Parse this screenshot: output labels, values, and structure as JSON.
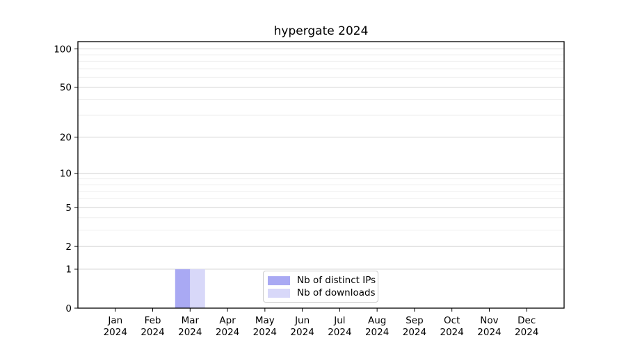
{
  "figure": {
    "title": "hypergate 2024"
  },
  "legend": {
    "items": [
      {
        "label": "Nb of distinct IPs",
        "color": "#a9a9f3"
      },
      {
        "label": "Nb of downloads",
        "color": "#d8d8f9"
      }
    ]
  },
  "chart_data": {
    "type": "bar",
    "title": "hypergate 2024",
    "categories": [
      "Jan",
      "Feb",
      "Mar",
      "Apr",
      "May",
      "Jun",
      "Jul",
      "Aug",
      "Sep",
      "Oct",
      "Nov",
      "Dec"
    ],
    "category_sublabel": "2024",
    "series": [
      {
        "name": "Nb of distinct IPs",
        "color": "#a9a9f3",
        "values": [
          0,
          0,
          1,
          0,
          0,
          0,
          0,
          0,
          0,
          0,
          0,
          0
        ]
      },
      {
        "name": "Nb of downloads",
        "color": "#d8d8f9",
        "values": [
          0,
          0,
          1,
          0,
          0,
          0,
          0,
          0,
          0,
          0,
          0,
          0
        ]
      }
    ],
    "yscale": "log1p",
    "ylim": [
      0,
      113
    ],
    "y_major_ticks": [
      0,
      1,
      2,
      5,
      10,
      20,
      50,
      100
    ],
    "y_minor_ticks": [
      3,
      4,
      6,
      7,
      8,
      9,
      30,
      40,
      60,
      70,
      80,
      90
    ],
    "grid": true,
    "legend_position": "lower center"
  },
  "colors": {
    "background": "#ffffff",
    "axis": "#000000",
    "major_grid": "#d2d2d2",
    "minor_grid": "#efefef",
    "text": "#000000",
    "legend_border": "#cccccc"
  }
}
